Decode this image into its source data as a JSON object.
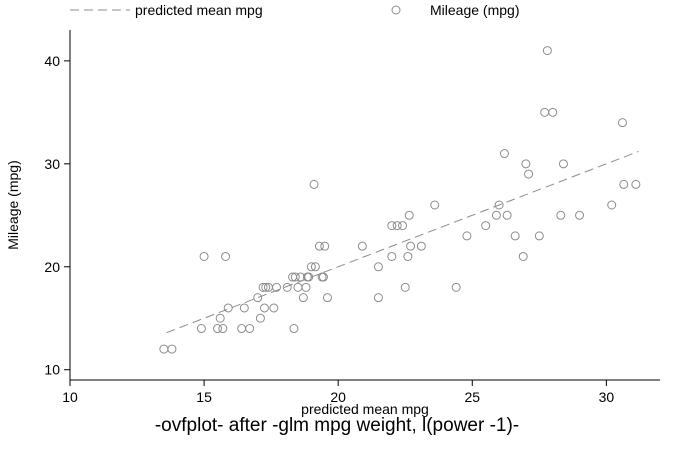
{
  "chart_data": {
    "type": "scatter",
    "caption": "-ovfplot- after -glm mpg weight, l(power -1)-",
    "xlabel": "predicted mean mpg",
    "ylabel": "Mileage (mpg)",
    "xlim": [
      10,
      32
    ],
    "ylim": [
      9,
      43
    ],
    "xticks": [
      10,
      15,
      20,
      25,
      30
    ],
    "yticks": [
      10,
      20,
      30,
      40
    ],
    "grid": false,
    "legend_position": "top",
    "legend": [
      {
        "label": "predicted mean mpg",
        "style": "dashed-line"
      },
      {
        "label": "Mileage (mpg)",
        "style": "hollow-circle"
      }
    ],
    "series": [
      {
        "name": "predicted mean mpg",
        "kind": "line",
        "color": "#8c8c8c",
        "points": [
          [
            13.6,
            13.6
          ],
          [
            31.2,
            31.2
          ]
        ]
      },
      {
        "name": "Mileage (mpg)",
        "kind": "scatter",
        "color": "#8c8c8c",
        "points": [
          [
            13.5,
            12
          ],
          [
            13.8,
            12
          ],
          [
            14.9,
            14
          ],
          [
            15.0,
            21
          ],
          [
            15.5,
            14
          ],
          [
            15.6,
            15
          ],
          [
            15.7,
            14
          ],
          [
            15.8,
            21
          ],
          [
            15.9,
            16
          ],
          [
            16.4,
            14
          ],
          [
            16.5,
            16
          ],
          [
            16.7,
            14
          ],
          [
            17.0,
            17
          ],
          [
            17.1,
            15
          ],
          [
            17.2,
            18
          ],
          [
            17.25,
            16
          ],
          [
            17.3,
            18
          ],
          [
            17.4,
            18
          ],
          [
            17.6,
            16
          ],
          [
            17.7,
            18
          ],
          [
            18.1,
            18
          ],
          [
            18.3,
            19
          ],
          [
            18.35,
            14
          ],
          [
            18.4,
            19
          ],
          [
            18.5,
            18
          ],
          [
            18.6,
            19
          ],
          [
            18.7,
            17
          ],
          [
            18.8,
            18
          ],
          [
            18.85,
            19
          ],
          [
            18.9,
            19
          ],
          [
            19.0,
            20
          ],
          [
            19.1,
            28
          ],
          [
            19.15,
            20
          ],
          [
            19.3,
            22
          ],
          [
            19.4,
            19
          ],
          [
            19.45,
            19
          ],
          [
            19.5,
            22
          ],
          [
            19.6,
            17
          ],
          [
            20.9,
            22
          ],
          [
            21.5,
            20
          ],
          [
            21.5,
            17
          ],
          [
            22.0,
            21
          ],
          [
            22.0,
            24
          ],
          [
            22.2,
            24
          ],
          [
            22.4,
            24
          ],
          [
            22.5,
            18
          ],
          [
            22.6,
            21
          ],
          [
            22.65,
            25
          ],
          [
            22.7,
            22
          ],
          [
            23.1,
            22
          ],
          [
            23.6,
            26
          ],
          [
            24.4,
            18
          ],
          [
            24.8,
            23
          ],
          [
            25.5,
            24
          ],
          [
            25.9,
            25
          ],
          [
            26.0,
            26
          ],
          [
            26.2,
            31
          ],
          [
            26.3,
            25
          ],
          [
            26.6,
            23
          ],
          [
            26.9,
            21
          ],
          [
            27.0,
            30
          ],
          [
            27.1,
            29
          ],
          [
            27.5,
            23
          ],
          [
            27.7,
            35
          ],
          [
            27.8,
            41
          ],
          [
            28.0,
            35
          ],
          [
            28.3,
            25
          ],
          [
            28.4,
            30
          ],
          [
            29.0,
            25
          ],
          [
            30.2,
            26
          ],
          [
            30.6,
            34
          ],
          [
            30.65,
            28
          ],
          [
            31.1,
            28
          ]
        ]
      }
    ]
  }
}
